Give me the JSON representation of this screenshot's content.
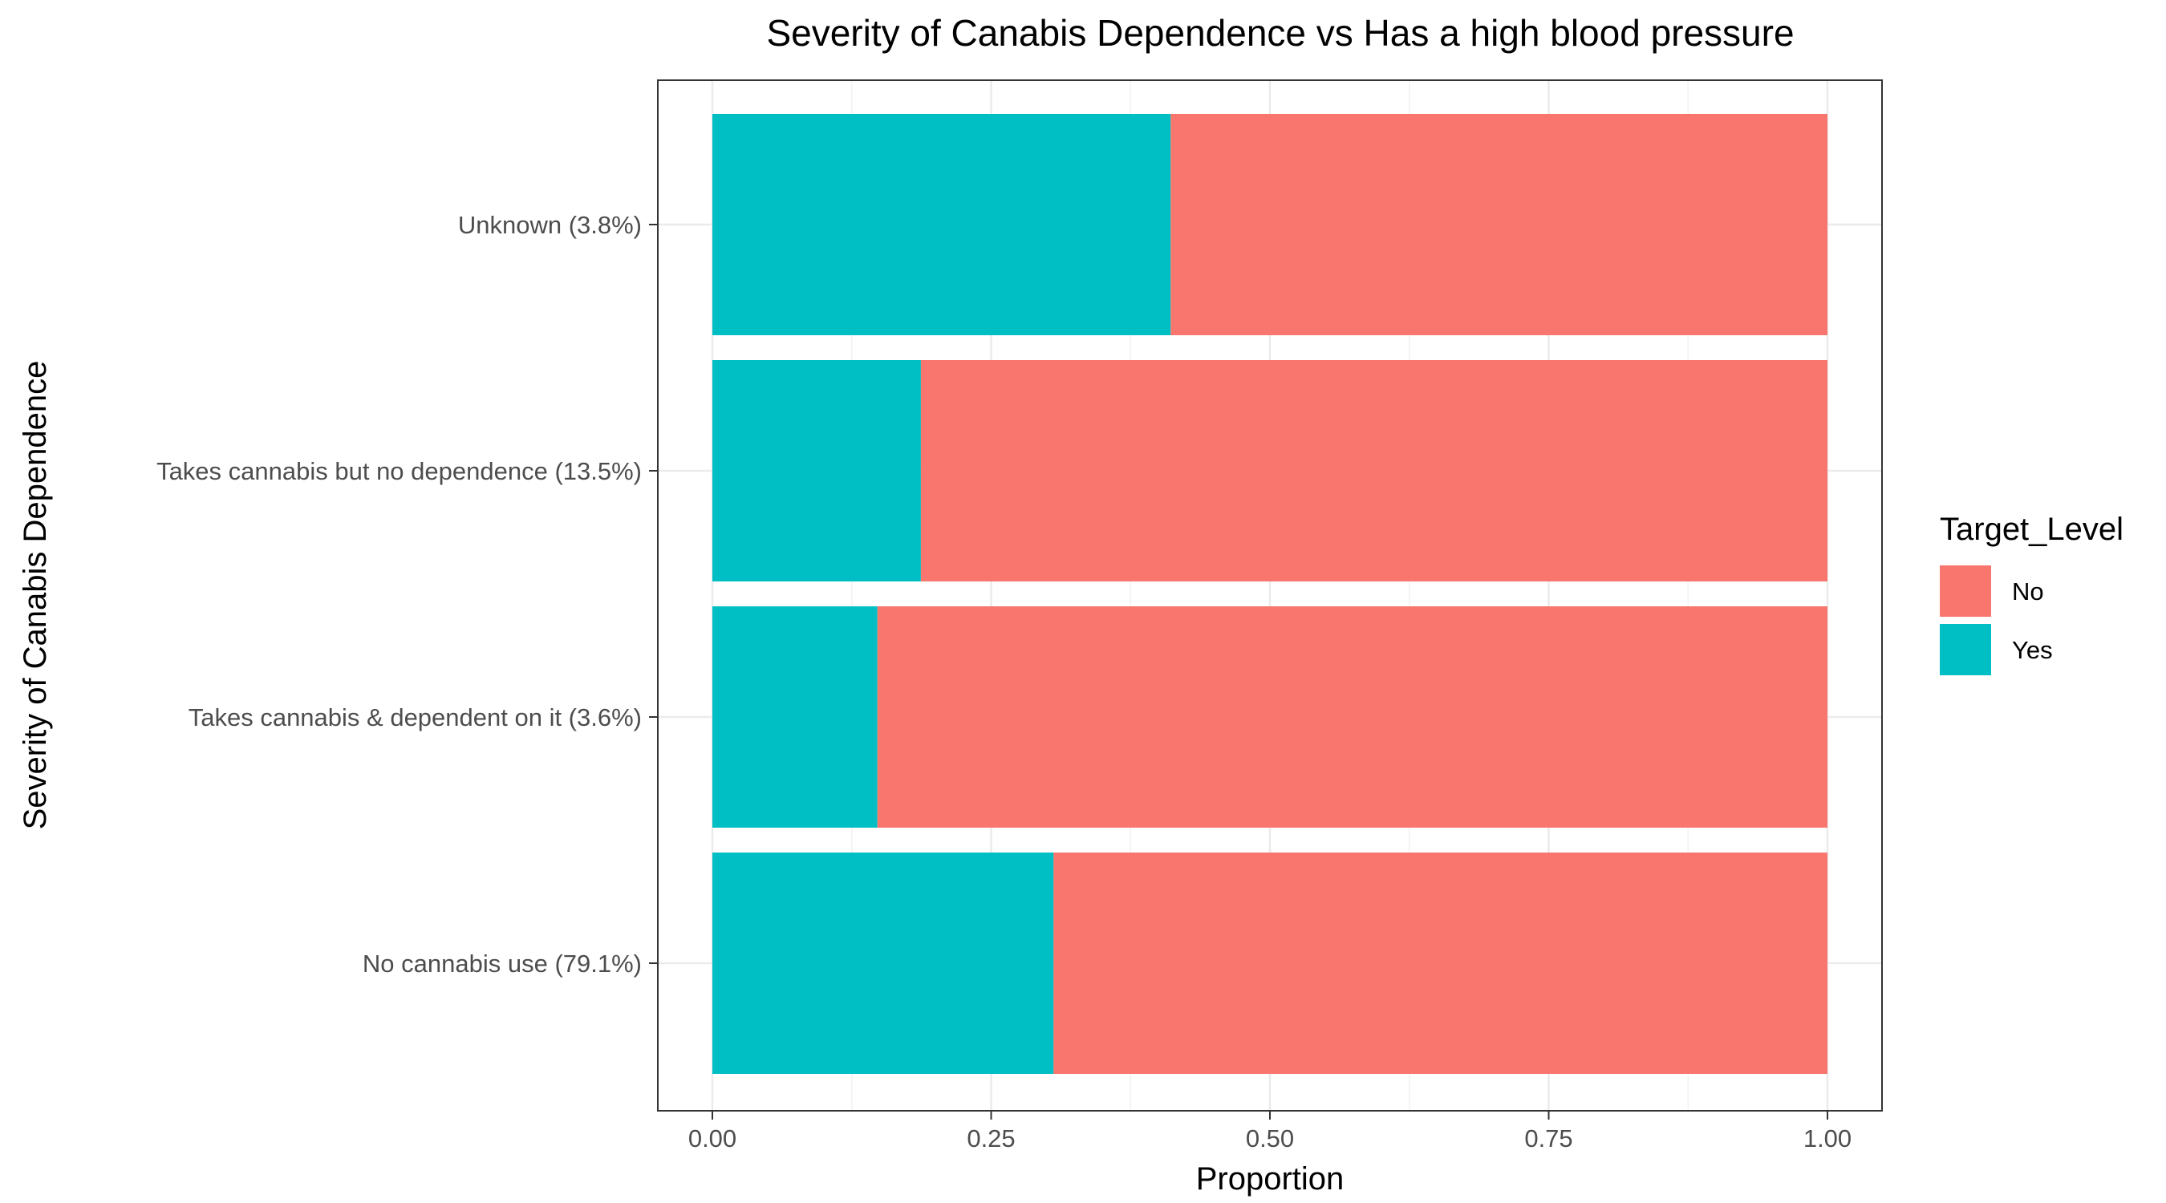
{
  "chart_data": {
    "type": "bar",
    "orientation": "horizontal",
    "stacked": true,
    "title": "Severity of Canabis Dependence vs Has a high blood pressure",
    "xlabel": "Proportion",
    "ylabel": "Severity of Canabis Dependence",
    "xlim": [
      0,
      1
    ],
    "xticks": [
      "0.00",
      "0.25",
      "0.50",
      "0.75",
      "1.00"
    ],
    "grid": true,
    "categories": [
      "No cannabis use (79.1%)",
      "Takes cannabis & dependent on it (3.6%)",
      "Takes cannabis but no dependence (13.5%)",
      "Unknown (3.8%)"
    ],
    "series": [
      {
        "name": "Yes",
        "color": "#00BFC4",
        "values": [
          0.306,
          0.148,
          0.187,
          0.411
        ]
      },
      {
        "name": "No",
        "color": "#F8766D",
        "values": [
          0.694,
          0.852,
          0.813,
          0.589
        ]
      }
    ],
    "legend": {
      "title": "Target_Level",
      "position": "right",
      "items": [
        {
          "label": "No",
          "color": "#F8766D"
        },
        {
          "label": "Yes",
          "color": "#00BFC4"
        }
      ]
    }
  }
}
